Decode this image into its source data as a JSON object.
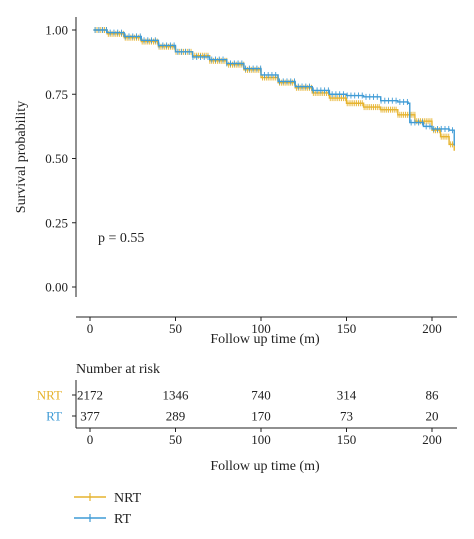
{
  "chart_data": {
    "type": "line",
    "subtype": "kaplan-meier",
    "title": "",
    "xlabel": "Follow up time (m)",
    "ylabel": "Survival probability",
    "xlim": [
      -5,
      213
    ],
    "ylim": [
      -0.05,
      1.05
    ],
    "x_ticks": [
      0,
      50,
      100,
      150,
      200
    ],
    "x_tick_labels": [
      "0",
      "50",
      "100",
      "150",
      "200"
    ],
    "y_ticks": [
      0,
      0.25,
      0.5,
      0.75,
      1.0
    ],
    "y_tick_labels": [
      "0.00",
      "0.25",
      "0.50",
      "0.75",
      "1.00"
    ],
    "grid": false,
    "annotation": "p = 0.55",
    "legend_position": "bottom-left",
    "series": [
      {
        "name": "NRT",
        "color": "#E6B32E",
        "points": [
          [
            2,
            1.0
          ],
          [
            10,
            0.985
          ],
          [
            20,
            0.97
          ],
          [
            30,
            0.955
          ],
          [
            40,
            0.935
          ],
          [
            50,
            0.915
          ],
          [
            60,
            0.9
          ],
          [
            70,
            0.88
          ],
          [
            80,
            0.865
          ],
          [
            90,
            0.845
          ],
          [
            100,
            0.815
          ],
          [
            110,
            0.795
          ],
          [
            120,
            0.775
          ],
          [
            130,
            0.755
          ],
          [
            140,
            0.735
          ],
          [
            150,
            0.715
          ],
          [
            160,
            0.7
          ],
          [
            170,
            0.69
          ],
          [
            180,
            0.67
          ],
          [
            190,
            0.645
          ],
          [
            200,
            0.61
          ],
          [
            205,
            0.585
          ],
          [
            210,
            0.555
          ],
          [
            213,
            0.53
          ]
        ]
      },
      {
        "name": "RT",
        "color": "#3F9BD6",
        "points": [
          [
            2,
            1.0
          ],
          [
            10,
            0.99
          ],
          [
            20,
            0.975
          ],
          [
            30,
            0.96
          ],
          [
            40,
            0.94
          ],
          [
            50,
            0.915
          ],
          [
            60,
            0.895
          ],
          [
            70,
            0.885
          ],
          [
            80,
            0.87
          ],
          [
            90,
            0.85
          ],
          [
            100,
            0.825
          ],
          [
            110,
            0.8
          ],
          [
            120,
            0.78
          ],
          [
            130,
            0.765
          ],
          [
            140,
            0.75
          ],
          [
            150,
            0.745
          ],
          [
            160,
            0.74
          ],
          [
            170,
            0.725
          ],
          [
            180,
            0.72
          ],
          [
            186,
            0.715
          ],
          [
            187,
            0.64
          ],
          [
            195,
            0.625
          ],
          [
            200,
            0.615
          ],
          [
            210,
            0.61
          ],
          [
            213,
            0.55
          ]
        ]
      }
    ],
    "risk_table": {
      "title": "Number at risk",
      "xlabel": "Follow up time (m)",
      "times": [
        0,
        50,
        100,
        150,
        200
      ],
      "rows": [
        {
          "name": "NRT",
          "color": "#E6B32E",
          "values": [
            2172,
            1346,
            740,
            314,
            86
          ]
        },
        {
          "name": "RT",
          "color": "#3F9BD6",
          "values": [
            377,
            289,
            170,
            73,
            20
          ]
        }
      ]
    }
  }
}
